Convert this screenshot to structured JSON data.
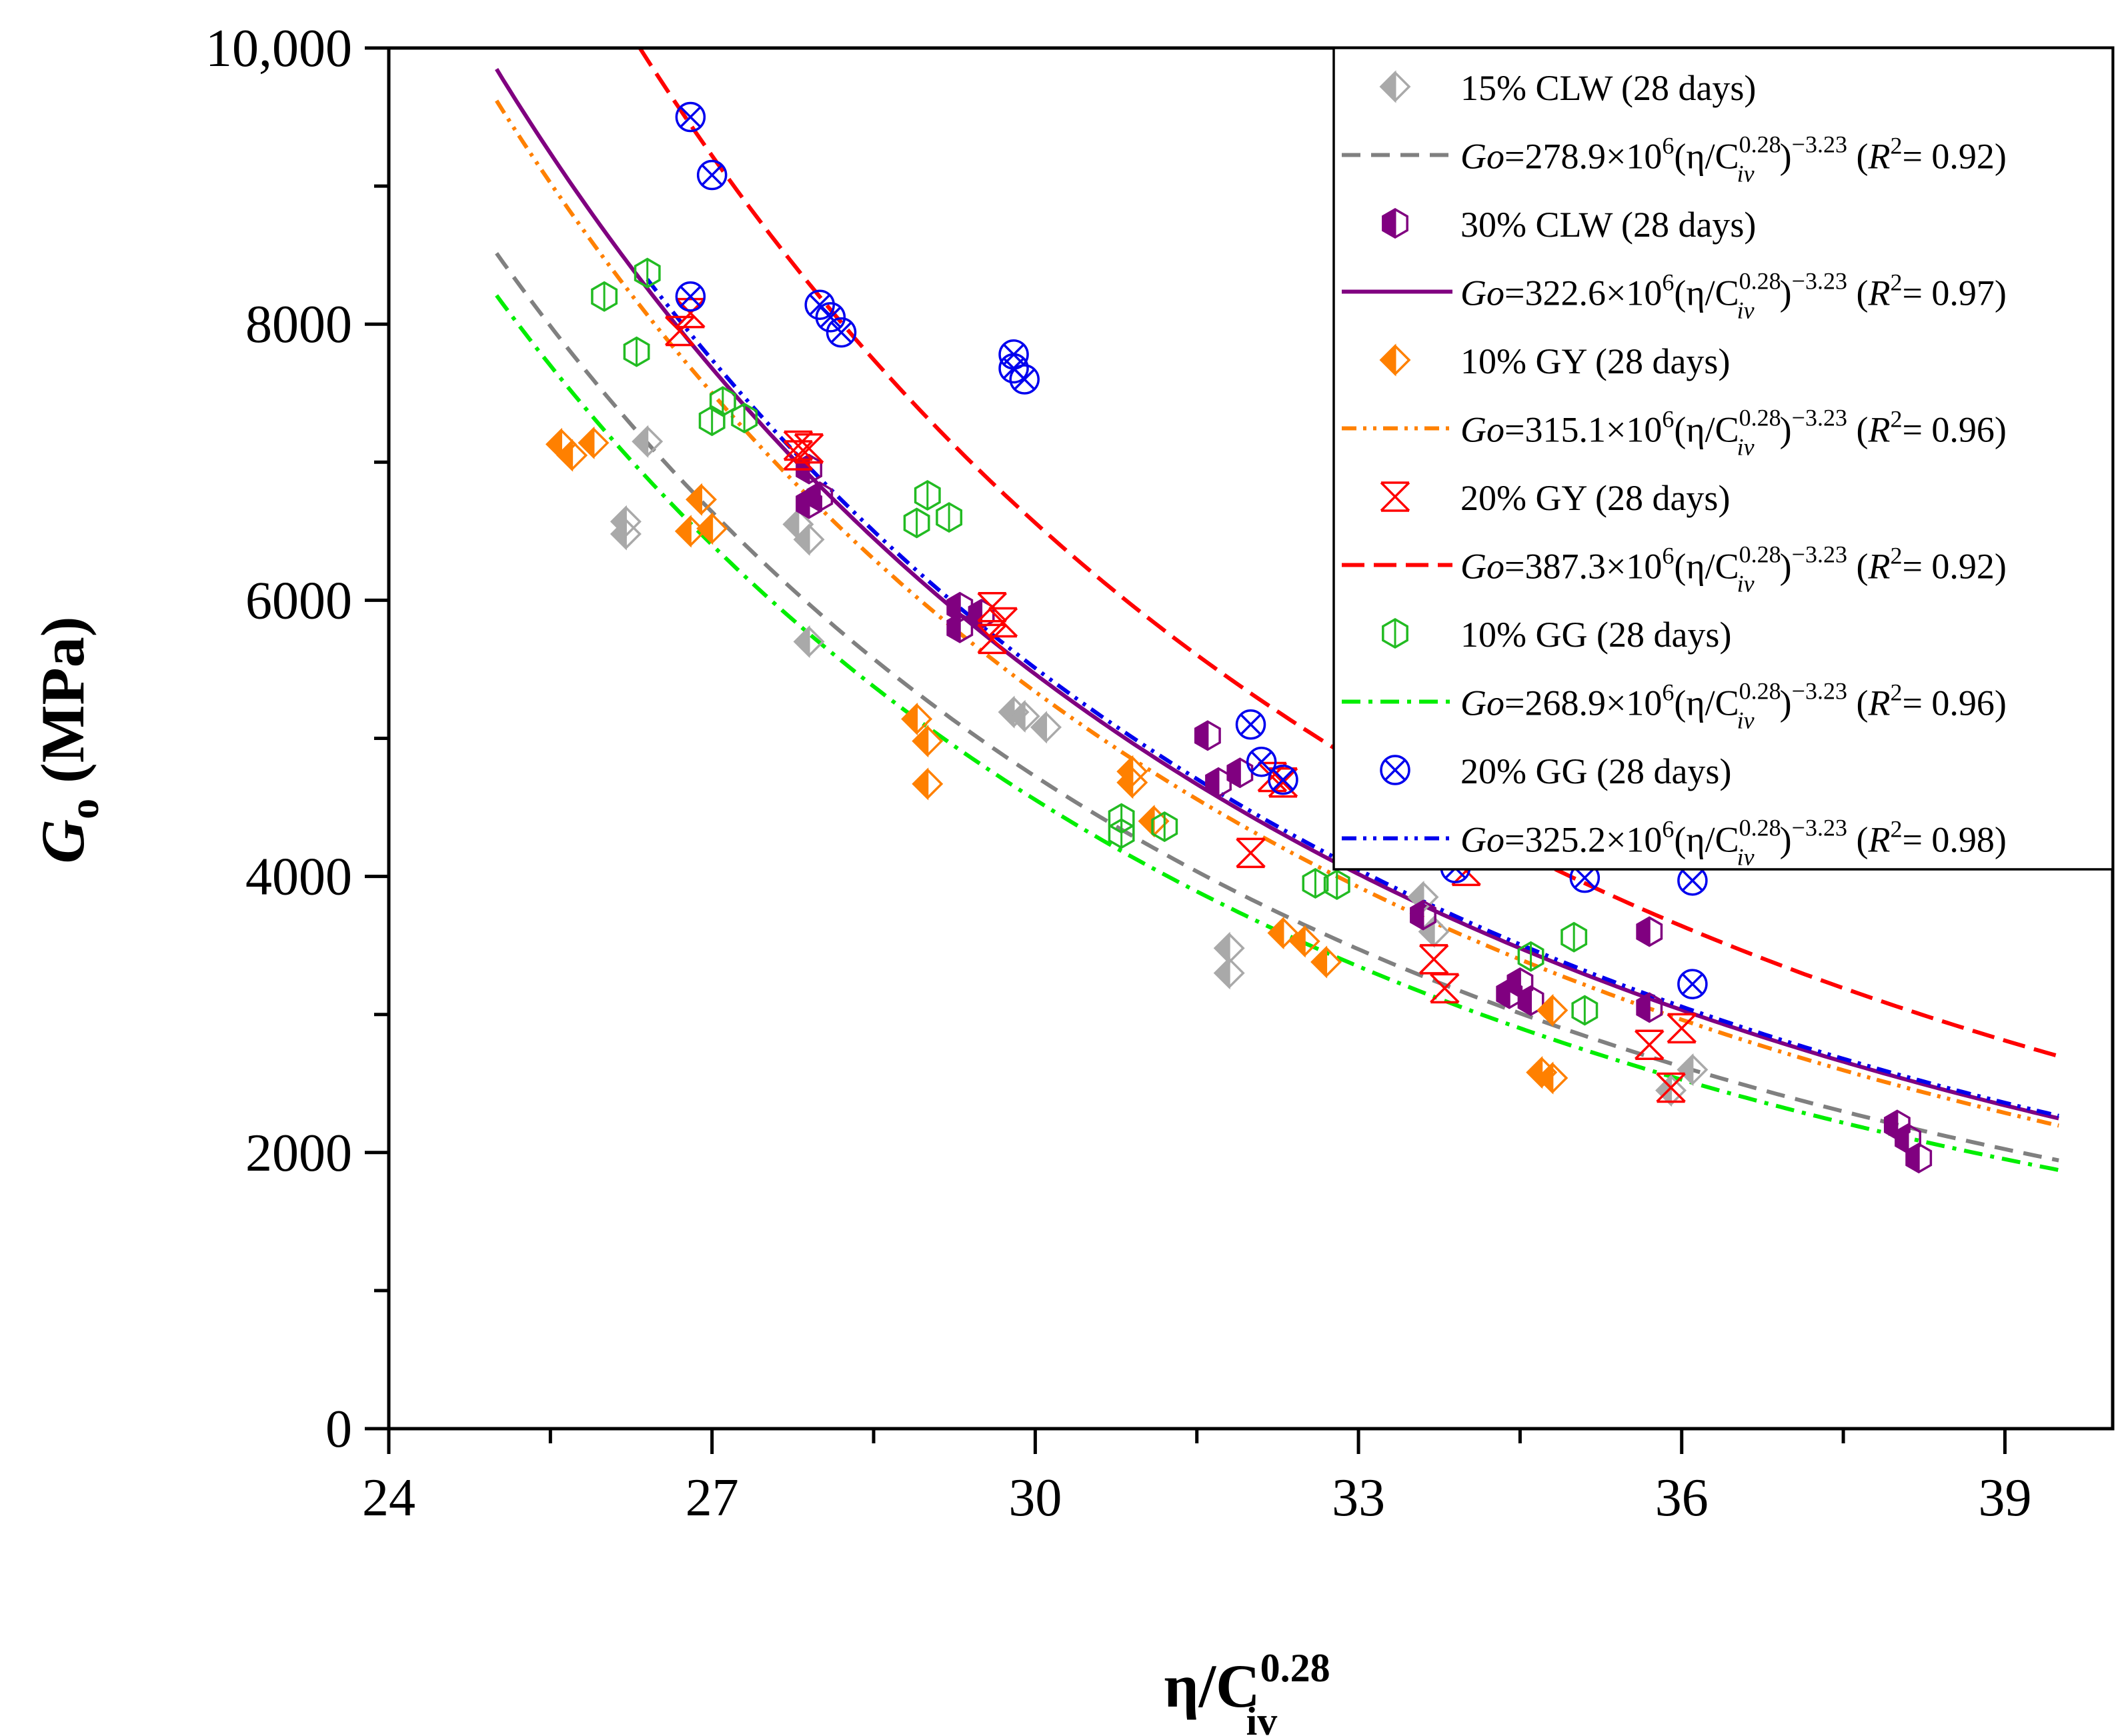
{
  "chart_data": {
    "type": "scatter",
    "xlabel": {
      "main": "η/C",
      "sub": "iv",
      "sup": "0.28"
    },
    "ylabel": {
      "main": "G",
      "sub": "o",
      "rest": " (MPa)"
    },
    "xlim": [
      24,
      40
    ],
    "ylim": [
      0,
      10000
    ],
    "x_ticks": [
      24,
      27,
      30,
      33,
      36,
      39
    ],
    "x_minor_ticks": [
      25.5,
      28.5,
      31.5,
      34.5,
      37.5
    ],
    "y_ticks": [
      {
        "value": 0,
        "label": "0"
      },
      {
        "value": 2000,
        "label": "2000"
      },
      {
        "value": 4000,
        "label": "4000"
      },
      {
        "value": 6000,
        "label": "6000"
      },
      {
        "value": 8000,
        "label": "8000"
      },
      {
        "value": 10000,
        "label": "10,000"
      }
    ],
    "y_minor_ticks": [
      1000,
      3000,
      5000,
      7000,
      9000
    ],
    "grid": false,
    "legend_position": "top-right",
    "series": [
      {
        "name": "15% CLW (28 days)",
        "color": "#a9a9a9",
        "marker": "diamond-half",
        "points": [
          [
            26.2,
            6570
          ],
          [
            26.2,
            6480
          ],
          [
            26.4,
            7150
          ],
          [
            27.8,
            6550
          ],
          [
            27.9,
            6440
          ],
          [
            27.9,
            5700
          ],
          [
            29.8,
            5190
          ],
          [
            29.9,
            5160
          ],
          [
            30.1,
            5080
          ],
          [
            31.8,
            3480
          ],
          [
            31.8,
            3300
          ],
          [
            33.6,
            3850
          ],
          [
            33.7,
            3600
          ],
          [
            35.9,
            2450
          ],
          [
            36.1,
            2600
          ]
        ]
      },
      {
        "name": "30% CLW (28 days)",
        "color": "#800080",
        "marker": "hexagon-half",
        "points": [
          [
            27.9,
            6950
          ],
          [
            27.9,
            6700
          ],
          [
            28.0,
            6750
          ],
          [
            29.3,
            5950
          ],
          [
            29.3,
            5800
          ],
          [
            29.5,
            5900
          ],
          [
            31.6,
            5020
          ],
          [
            31.7,
            4680
          ],
          [
            31.9,
            4750
          ],
          [
            33.6,
            3720
          ],
          [
            34.4,
            3150
          ],
          [
            34.5,
            3230
          ],
          [
            34.6,
            3100
          ],
          [
            35.7,
            3600
          ],
          [
            35.7,
            3050
          ],
          [
            38.0,
            2200
          ],
          [
            38.1,
            2100
          ],
          [
            38.2,
            1960
          ]
        ]
      },
      {
        "name": "10% GY (28 days)",
        "color": "#ff8000",
        "marker": "diamond-half",
        "points": [
          [
            25.6,
            7130
          ],
          [
            25.7,
            7050
          ],
          [
            25.9,
            7140
          ],
          [
            26.8,
            6500
          ],
          [
            26.9,
            6730
          ],
          [
            27.0,
            6520
          ],
          [
            28.9,
            5140
          ],
          [
            29.0,
            4980
          ],
          [
            29.0,
            4670
          ],
          [
            30.9,
            4760
          ],
          [
            30.9,
            4680
          ],
          [
            31.1,
            4400
          ],
          [
            32.3,
            3590
          ],
          [
            32.5,
            3530
          ],
          [
            32.7,
            3380
          ],
          [
            34.7,
            2580
          ],
          [
            34.8,
            2540
          ],
          [
            34.8,
            3030
          ]
        ]
      },
      {
        "name": "20% GY (28 days)",
        "color": "#ff0000",
        "marker": "xbox",
        "points": [
          [
            26.7,
            7950
          ],
          [
            26.8,
            8080
          ],
          [
            27.8,
            7120
          ],
          [
            27.8,
            7050
          ],
          [
            27.9,
            7100
          ],
          [
            29.6,
            5950
          ],
          [
            29.6,
            5720
          ],
          [
            29.7,
            5840
          ],
          [
            32.0,
            4170
          ],
          [
            32.2,
            4720
          ],
          [
            32.3,
            4680
          ],
          [
            33.7,
            3400
          ],
          [
            33.8,
            3190
          ],
          [
            34.0,
            4040
          ],
          [
            35.7,
            2780
          ],
          [
            35.9,
            2470
          ],
          [
            36.0,
            2900
          ]
        ]
      },
      {
        "name": "10% GG (28 days)",
        "color": "#22bb22",
        "marker": "hexagon-open",
        "points": [
          [
            26.0,
            8200
          ],
          [
            26.3,
            7800
          ],
          [
            26.4,
            8370
          ],
          [
            27.0,
            7300
          ],
          [
            27.1,
            7440
          ],
          [
            27.3,
            7320
          ],
          [
            28.9,
            6560
          ],
          [
            29.0,
            6760
          ],
          [
            29.2,
            6600
          ],
          [
            30.8,
            4310
          ],
          [
            30.8,
            4420
          ],
          [
            31.2,
            4360
          ],
          [
            32.6,
            3950
          ],
          [
            32.8,
            3940
          ],
          [
            34.6,
            3420
          ],
          [
            35.0,
            3560
          ],
          [
            35.1,
            3030
          ]
        ]
      },
      {
        "name": "20% GG (28 days)",
        "color": "#0000ee",
        "marker": "circle-x",
        "points": [
          [
            26.8,
            8200
          ],
          [
            26.8,
            9500
          ],
          [
            27.0,
            9080
          ],
          [
            28.0,
            8140
          ],
          [
            28.1,
            8050
          ],
          [
            28.2,
            7940
          ],
          [
            29.8,
            7780
          ],
          [
            29.8,
            7680
          ],
          [
            29.9,
            7600
          ],
          [
            32.0,
            5100
          ],
          [
            32.1,
            4830
          ],
          [
            32.3,
            4700
          ],
          [
            33.9,
            4060
          ],
          [
            35.1,
            3990
          ],
          [
            36.1,
            3220
          ],
          [
            36.1,
            3970
          ]
        ]
      }
    ],
    "fit_lines": [
      {
        "label": "278.9×10",
        "coef": 278900000.0,
        "exp": -3.23,
        "r2": "0.92",
        "color": "#808080",
        "dash": "dash",
        "x_range": [
          25.0,
          39.5
        ]
      },
      {
        "label": "322.6×10",
        "coef": 322600000.0,
        "exp": -3.23,
        "r2": "0.97",
        "color": "#800080",
        "dash": "solid",
        "x_range": [
          25.0,
          39.5
        ]
      },
      {
        "label": "315.1×10",
        "coef": 315100000.0,
        "exp": -3.23,
        "r2": "0.96",
        "color": "#ff8000",
        "dash": "dashdotdot",
        "x_range": [
          25.0,
          39.5
        ]
      },
      {
        "label": "387.3×10",
        "coef": 387300000.0,
        "exp": -3.23,
        "r2": "0.92",
        "color": "#ff0000",
        "dash": "bigdash",
        "x_range": [
          25.0,
          39.5
        ]
      },
      {
        "label": "268.9×10",
        "coef": 268900000.0,
        "exp": -3.23,
        "r2": "0.96",
        "color": "#00ee00",
        "dash": "dashdot",
        "x_range": [
          25.0,
          39.5
        ]
      },
      {
        "label": "325.2×10",
        "coef": 325200000.0,
        "exp": -3.23,
        "r2": "0.98",
        "color": "#0000ee",
        "dash": "dashdotdot",
        "x_range": [
          26.4,
          39.5
        ]
      }
    ],
    "legend_formula": {
      "go": "Go",
      "eq": "=",
      "ten_exp": "6",
      "paren_open": "(η/C",
      "c_sup": "0.28",
      "c_sub": "iv",
      "paren_close": ")",
      "power": "−3.23",
      "r_open": " (",
      "r": "R",
      "r_sup": "2",
      "r_eq": "= ",
      "r_close": ")"
    }
  }
}
